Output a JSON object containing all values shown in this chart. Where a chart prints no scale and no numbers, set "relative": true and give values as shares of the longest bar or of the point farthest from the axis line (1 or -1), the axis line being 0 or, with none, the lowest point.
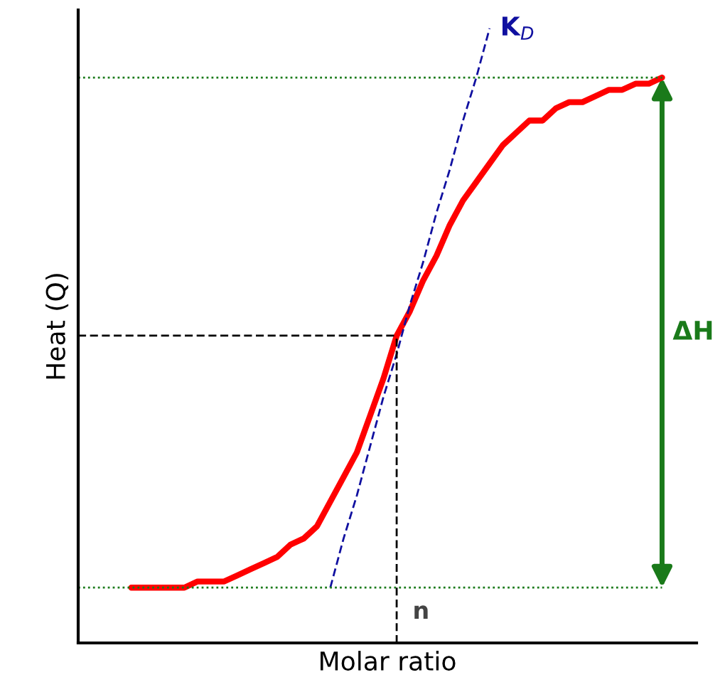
{
  "chart_data": {
    "type": "line",
    "relative": true,
    "xlabel": "Molar ratio",
    "ylabel": "Heat (Q)",
    "categories": [
      null,
      null,
      null,
      null,
      null,
      null,
      null,
      null,
      null,
      null,
      null,
      null,
      null,
      null,
      null,
      null,
      null,
      null,
      null,
      null,
      null,
      null,
      null,
      null,
      null,
      null,
      null,
      null,
      null,
      null,
      null,
      null,
      null,
      null,
      null,
      null,
      null,
      null,
      null,
      null,
      null
    ],
    "series": [
      {
        "color": "#ff0000",
        "values": [
          0.09,
          0.09,
          0.09,
          0.09,
          0.09,
          0.1,
          0.1,
          0.1,
          0.11,
          0.12,
          0.13,
          0.14,
          0.16,
          0.17,
          0.19,
          0.23,
          0.27,
          0.31,
          0.37,
          0.43,
          0.5,
          0.54,
          0.59,
          0.63,
          0.68,
          0.72,
          0.75,
          0.78,
          0.81,
          0.83,
          0.85,
          0.85,
          0.87,
          0.88,
          0.88,
          0.89,
          0.9,
          0.9,
          0.91,
          0.91,
          0.92
        ]
      },
      {
        "name": "K$_{D}$",
        "color": "#1010a0",
        "line_style": "dashed",
        "values": [
          null,
          null,
          null,
          null,
          null,
          null,
          null,
          null,
          null,
          null,
          null,
          null,
          null,
          null,
          null,
          0.09,
          0.17,
          0.24,
          0.32,
          0.4,
          0.47,
          0.55,
          0.62,
          0.7,
          0.77,
          0.85,
          0.92,
          1.0,
          null,
          null,
          null,
          null,
          null,
          null,
          null,
          null,
          null,
          null,
          null,
          null,
          null
        ]
      }
    ],
    "ref_lines": [
      {
        "axis": "y",
        "value": 0.5,
        "color": "#000000",
        "line_style": "dashed"
      },
      {
        "axis": "y",
        "value": 0.09,
        "color": "#1a7a1a",
        "line_style": "dotted"
      },
      {
        "axis": "y",
        "value": 0.92,
        "color": "#1a7a1a",
        "line_style": "dotted"
      }
    ],
    "annotations": [
      "n",
      "ΔH"
    ],
    "grid": false,
    "legend": false,
    "tick_labels": false
  }
}
